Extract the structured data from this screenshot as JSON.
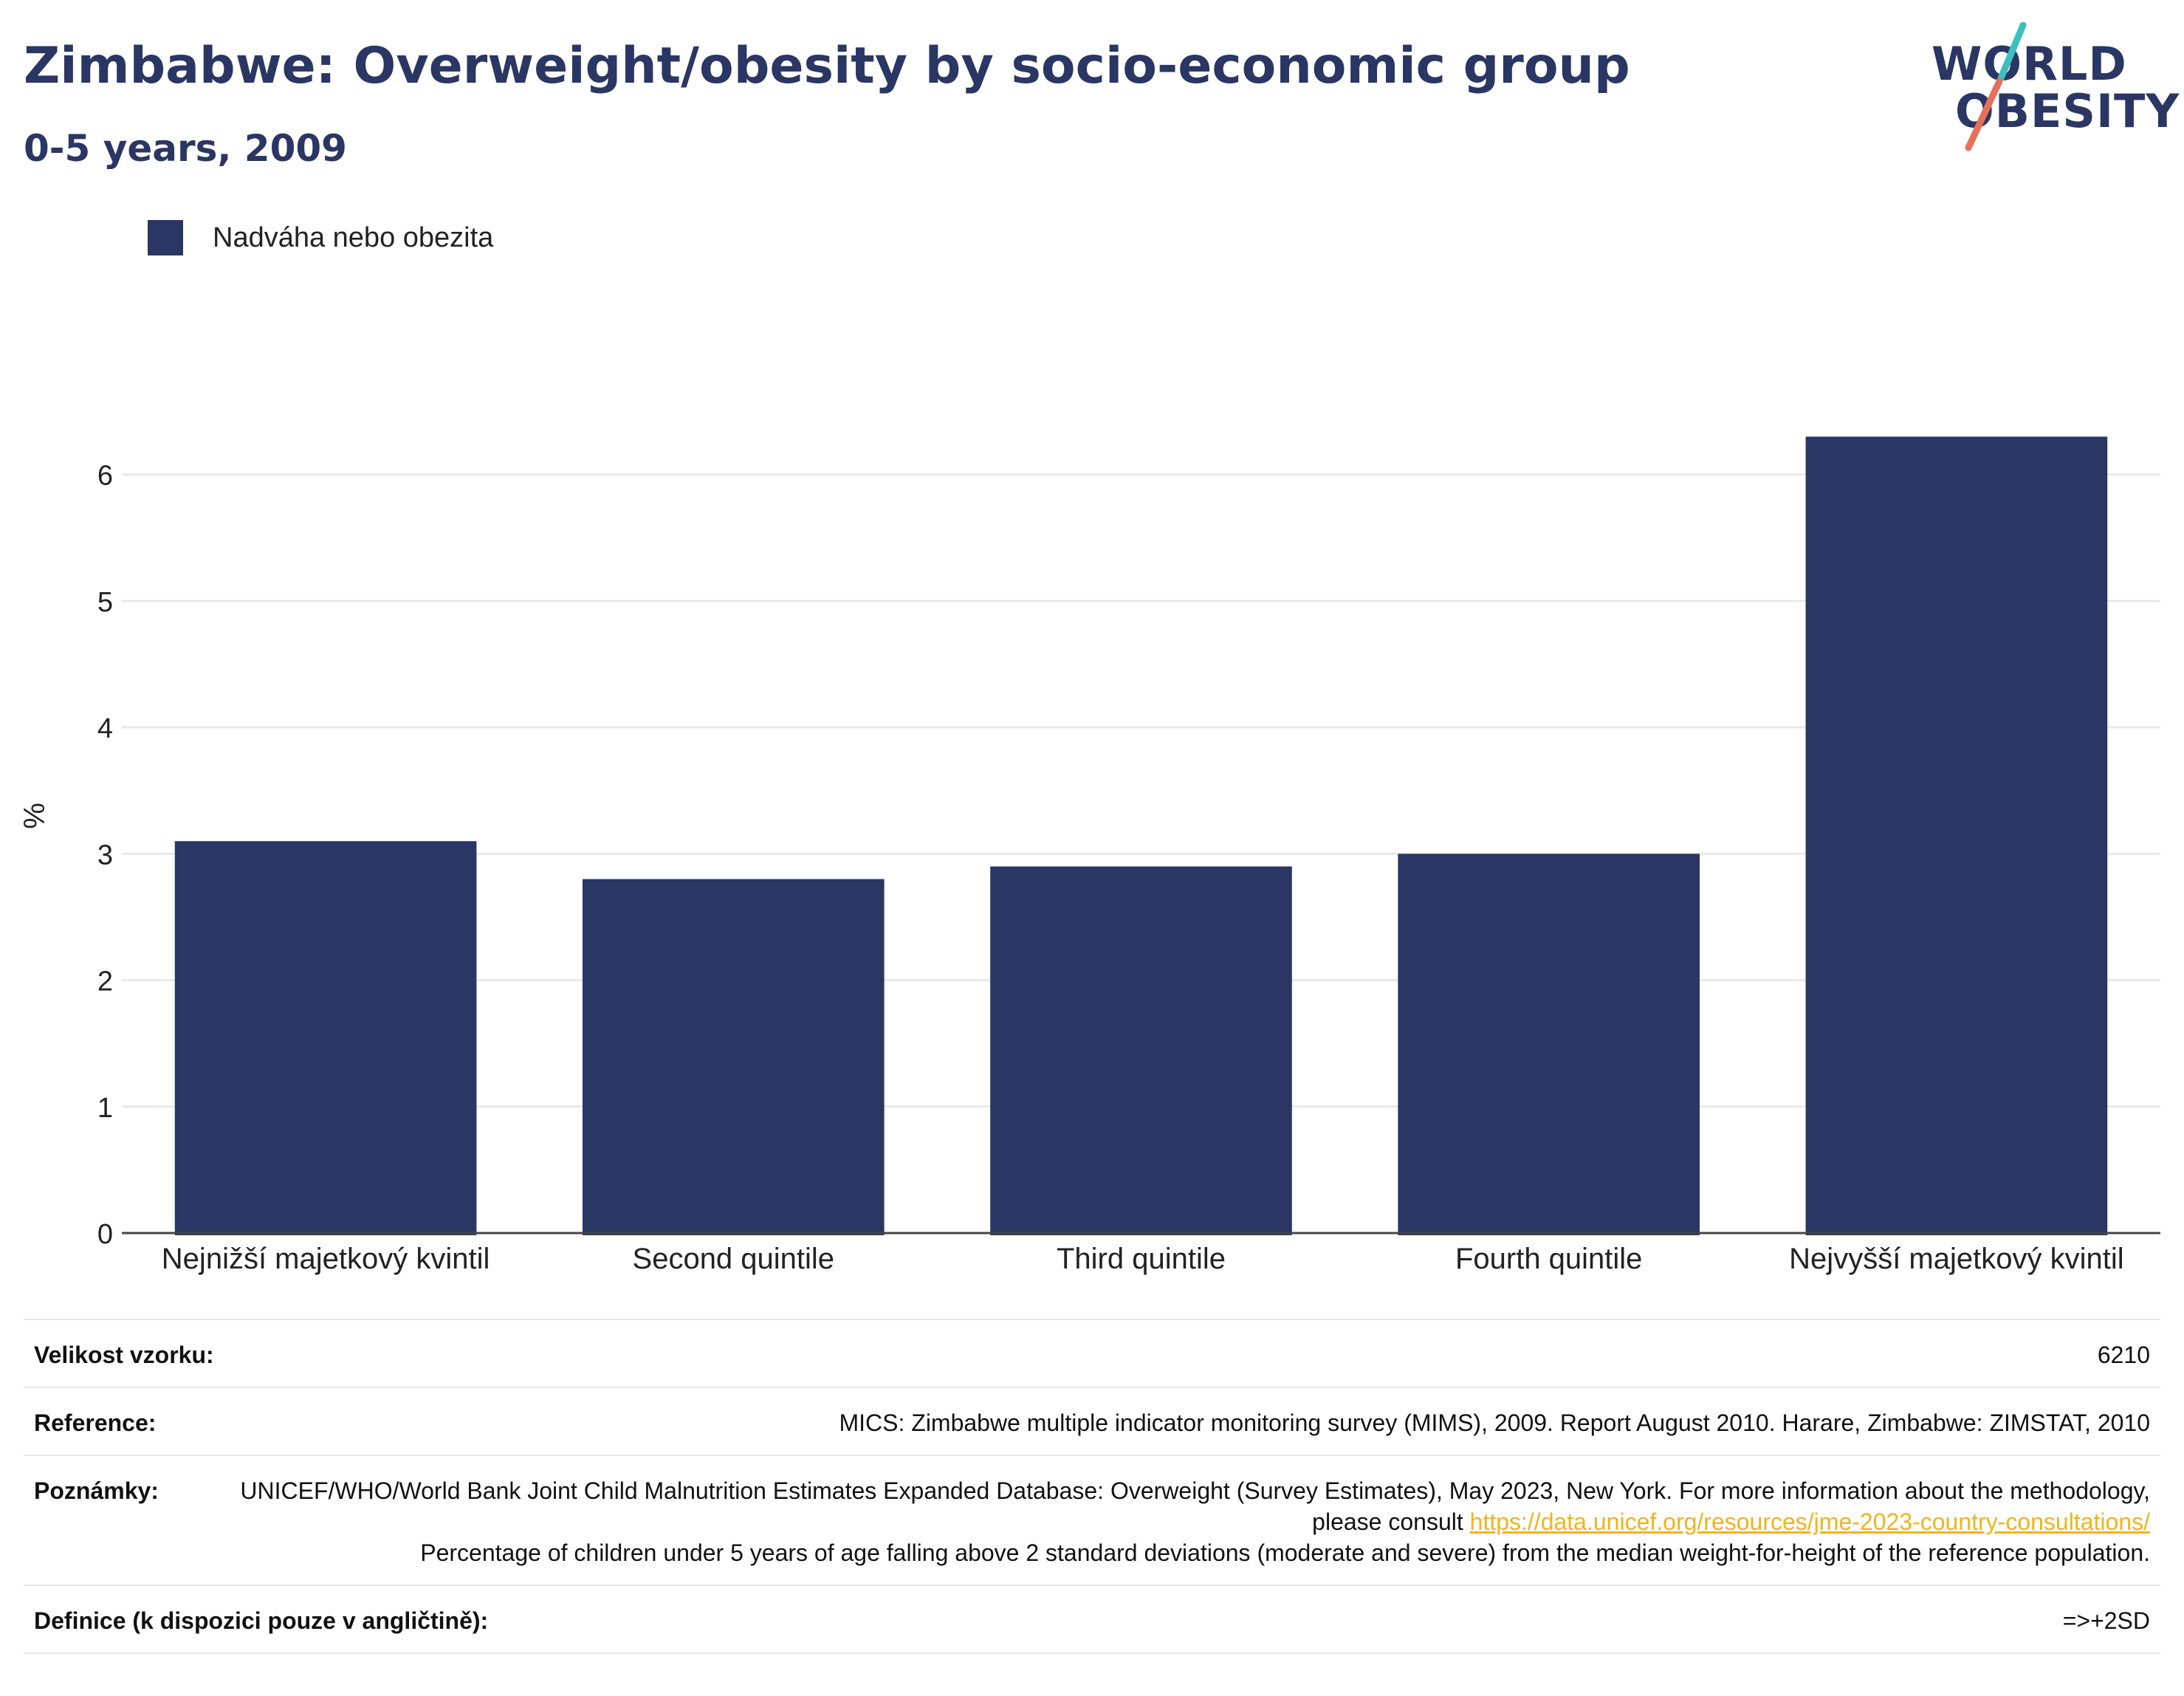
{
  "header": {
    "title": "Zimbabwe: Overweight/obesity by socio-economic group",
    "subtitle": "0-5 years, 2009"
  },
  "logo": {
    "line1": "WORLD",
    "line2": "OBESITY",
    "colors": {
      "navy": "#2a3663",
      "teal": "#3bbfbf",
      "coral": "#e8705a"
    }
  },
  "legend": {
    "items": [
      {
        "label": "Nadváha nebo obezita",
        "color": "#2a3663"
      }
    ]
  },
  "chart_data": {
    "type": "bar",
    "categories": [
      "Nejnižší majetkový kvintil",
      "Second quintile",
      "Third quintile",
      "Fourth quintile",
      "Nejvyšší majetkový kvintil"
    ],
    "series": [
      {
        "name": "Nadváha nebo obezita",
        "values": [
          3.1,
          2.8,
          2.9,
          3.0,
          6.3
        ],
        "color": "#2a3663"
      }
    ],
    "ylabel": "%",
    "ylim": [
      0,
      6.6
    ],
    "yticks": [
      0,
      1,
      2,
      3,
      4,
      5,
      6
    ],
    "grid": true,
    "legend_position": "top-left"
  },
  "info": {
    "sample": {
      "label": "Velikost vzorku:",
      "value": "6210"
    },
    "reference": {
      "label": "Reference:",
      "value": "MICS: Zimbabwe multiple indicator monitoring survey (MIMS), 2009. Report August 2010. Harare, Zimbabwe: ZIMSTAT, 2010"
    },
    "notes": {
      "label": "Poznámky:",
      "text_before": "UNICEF/WHO/World Bank Joint Child Malnutrition Estimates Expanded Database: Overweight (Survey Estimates), May 2023, New York. For more information about the methodology, please consult ",
      "link": "https://data.unicef.org/resources/jme-2023-country-consultations/",
      "text_after": "Percentage of children under 5 years of age falling above 2 standard deviations (moderate and severe) from the median weight-for-height of the reference population."
    },
    "definition": {
      "label": "Definice (k dispozici pouze v angličtině):",
      "value": "=>+2SD"
    }
  }
}
